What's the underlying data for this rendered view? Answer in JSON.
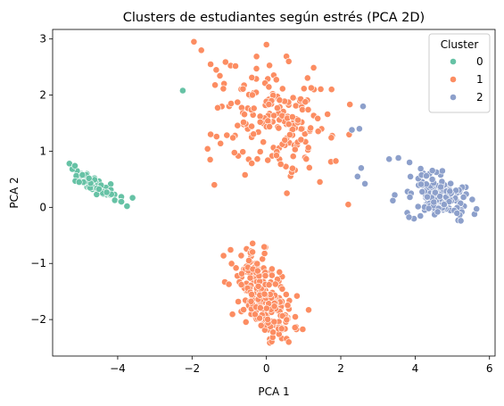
{
  "chart_data": {
    "type": "scatter",
    "title": "Clusters de estudiantes según estrés (PCA 2D)",
    "xlabel": "PCA 1",
    "ylabel": "PCA 2",
    "xlim": [
      -5.75,
      6.15
    ],
    "ylim": [
      -2.65,
      3.17
    ],
    "xticks": [
      -4,
      -2,
      0,
      2,
      4,
      6
    ],
    "yticks": [
      -2,
      -1,
      0,
      1,
      2,
      3
    ],
    "grid": false,
    "legend": {
      "title": "Cluster",
      "placement": "upper-right"
    },
    "series": [
      {
        "name": "0",
        "color": "#66c2a5",
        "clusters": [
          {
            "center": [
              -4.7,
              0.42
            ],
            "sx": 0.33,
            "sy": 0.13,
            "rho": -0.85,
            "n": 90,
            "xmin": -5.35,
            "xmax": -3.55,
            "ymin": 0.0,
            "ymax": 0.8
          }
        ],
        "points": [
          [
            -5.3,
            0.78
          ],
          [
            -5.15,
            0.74
          ],
          [
            -3.6,
            0.17
          ],
          [
            -3.75,
            0.02
          ],
          [
            -3.9,
            0.1
          ],
          [
            -2.25,
            2.08
          ]
        ]
      },
      {
        "name": "1",
        "color": "#fc8d62",
        "clusters": [
          {
            "center": [
              -0.1,
              -1.6
            ],
            "sx": 0.42,
            "sy": 0.42,
            "rho": -0.55,
            "n": 230,
            "xmin": -1.5,
            "xmax": 1.4,
            "ymin": -2.45,
            "ymax": -0.6
          },
          {
            "center": [
              0.3,
              1.55
            ],
            "sx": 0.85,
            "sy": 0.52,
            "rho": -0.3,
            "n": 190,
            "xmin": -1.9,
            "xmax": 2.7,
            "ymin": 0.4,
            "ymax": 2.75
          }
        ],
        "points": [
          [
            -1.95,
            2.95
          ],
          [
            -1.75,
            2.8
          ],
          [
            -1.5,
            2.55
          ],
          [
            -1.35,
            2.45
          ],
          [
            -1.4,
            0.4
          ],
          [
            -1.5,
            1.3
          ],
          [
            2.2,
            0.05
          ],
          [
            0.55,
            0.25
          ],
          [
            0.6,
            -2.4
          ],
          [
            0.0,
            2.9
          ],
          [
            0.6,
            2.6
          ]
        ]
      },
      {
        "name": "2",
        "color": "#8da0cb",
        "clusters": [
          {
            "center": [
              4.65,
              0.2
            ],
            "sx": 0.38,
            "sy": 0.2,
            "rho": -0.2,
            "n": 180,
            "xmin": 3.75,
            "xmax": 5.7,
            "ymin": -0.25,
            "ymax": 0.75
          }
        ],
        "points": [
          [
            2.6,
            1.8
          ],
          [
            2.5,
            1.4
          ],
          [
            2.3,
            1.38
          ],
          [
            3.3,
            0.86
          ],
          [
            3.55,
            0.88
          ],
          [
            2.55,
            0.7
          ],
          [
            2.65,
            0.42
          ],
          [
            2.45,
            0.55
          ],
          [
            3.45,
            0.22
          ],
          [
            3.4,
            0.12
          ],
          [
            3.85,
            0.8
          ],
          [
            5.65,
            -0.03
          ]
        ]
      }
    ]
  }
}
